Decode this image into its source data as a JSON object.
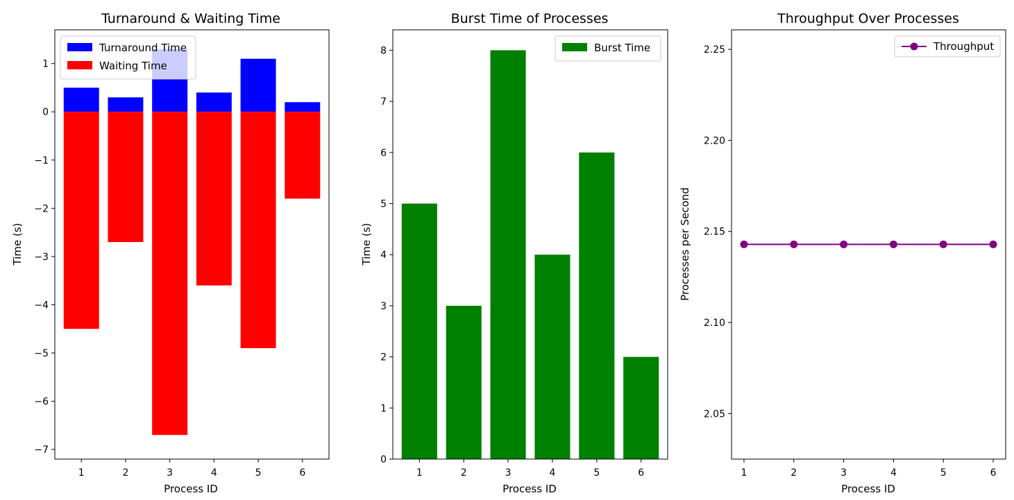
{
  "chart_data": [
    {
      "type": "bar",
      "title": "Turnaround & Waiting Time",
      "xlabel": "Process ID",
      "ylabel": "Time (s)",
      "categories": [
        "1",
        "2",
        "3",
        "4",
        "5",
        "6"
      ],
      "series": [
        {
          "name": "Turnaround Time",
          "color": "#0000ff",
          "values": [
            0.5,
            0.3,
            1.3,
            0.4,
            1.1,
            0.2
          ]
        },
        {
          "name": "Waiting Time",
          "color": "#ff0000",
          "values": [
            -4.5,
            -2.7,
            -6.7,
            -3.6,
            -4.9,
            -1.8
          ]
        }
      ],
      "ylim": [
        -7.2,
        1.7
      ],
      "yticks": [
        -7,
        -6,
        -5,
        -4,
        -3,
        -2,
        -1,
        0,
        1
      ],
      "legend": "top-left",
      "grid": false
    },
    {
      "type": "bar",
      "title": "Burst Time of Processes",
      "xlabel": "Process ID",
      "ylabel": "Time (s)",
      "categories": [
        "1",
        "2",
        "3",
        "4",
        "5",
        "6"
      ],
      "series": [
        {
          "name": "Burst Time",
          "color": "#008000",
          "values": [
            5,
            3,
            8,
            4,
            6,
            2
          ]
        }
      ],
      "ylim": [
        0,
        8.4
      ],
      "yticks": [
        0,
        1,
        2,
        3,
        4,
        5,
        6,
        7,
        8
      ],
      "legend": "top-right",
      "grid": false
    },
    {
      "type": "line",
      "title": "Throughput Over Processes",
      "xlabel": "Process ID",
      "ylabel": "Processes per Second",
      "x": [
        1,
        2,
        3,
        4,
        5,
        6
      ],
      "series": [
        {
          "name": "Throughput",
          "color": "#800080",
          "marker": "circle",
          "values": [
            2.1429,
            2.1429,
            2.1429,
            2.1429,
            2.1429,
            2.1429
          ]
        }
      ],
      "ylim": [
        2.025,
        2.2607
      ],
      "yticks": [
        "2.05",
        "2.10",
        "2.15",
        "2.20",
        "2.25"
      ],
      "xticks": [
        "1",
        "2",
        "3",
        "4",
        "5",
        "6"
      ],
      "legend": "top-right",
      "grid": false
    }
  ]
}
